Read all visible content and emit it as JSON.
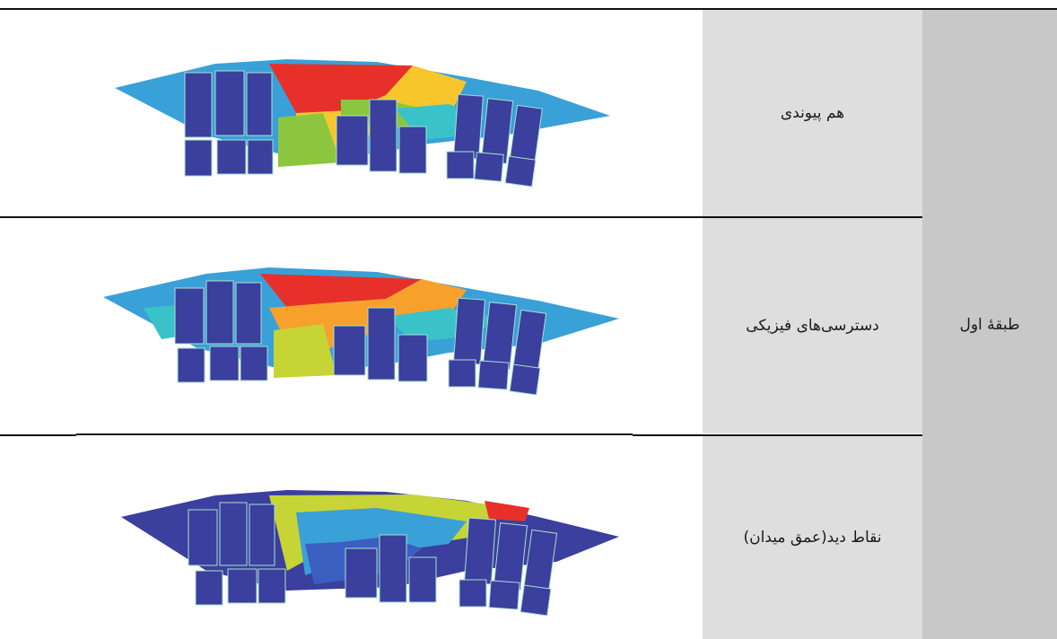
{
  "caption": "",
  "group_label": "طبقهٔ اول",
  "rows": [
    {
      "label": "هم پیوندی"
    },
    {
      "label": "دسترسی‌های فیزیکی"
    },
    {
      "label": "نقاط دید(عمق میدان)"
    }
  ],
  "colors": {
    "low": "#3b3f9e",
    "mid_low": "#3aa0d8",
    "mid": "#39c3c8",
    "mid_high": "#8cc63f",
    "high": "#f7c62c",
    "very_high": "#e8302a",
    "building": "#3b3f9e",
    "building_outline": "#a9e0d0"
  }
}
